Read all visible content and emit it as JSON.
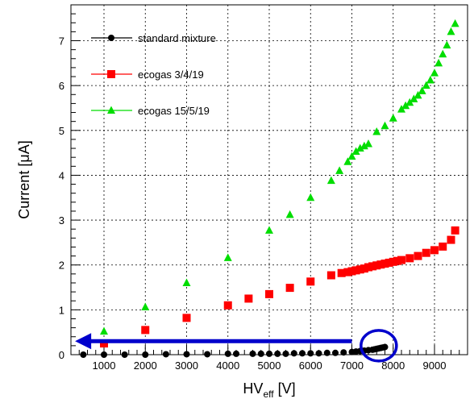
{
  "chart_data": {
    "type": "scatter",
    "xlabel": "HV",
    "xlabel_sub": "eff",
    "xlabel_unit": " [V]",
    "ylabel": "Current [μA]",
    "xlim": [
      200,
      9800
    ],
    "ylim": [
      0,
      7.8
    ],
    "x_ticks": [
      1000,
      2000,
      3000,
      4000,
      5000,
      6000,
      7000,
      8000,
      9000
    ],
    "y_ticks": [
      0,
      1,
      2,
      3,
      4,
      5,
      6,
      7
    ],
    "grid": true,
    "legend_position": "top-left",
    "series": [
      {
        "name": "standard mixture",
        "color": "#000000",
        "marker": "circle",
        "x": [
          500,
          1000,
          1500,
          2000,
          2500,
          3000,
          3500,
          4000,
          4200,
          4600,
          4800,
          5000,
          5200,
          5400,
          5600,
          5800,
          6000,
          6200,
          6400,
          6600,
          6800,
          7000,
          7100,
          7200,
          7300,
          7400,
          7500,
          7550,
          7600,
          7650,
          7700,
          7750,
          7800
        ],
        "y": [
          0.0,
          0.0,
          0.0,
          0.0,
          0.01,
          0.01,
          0.01,
          0.02,
          0.02,
          0.02,
          0.02,
          0.02,
          0.02,
          0.02,
          0.03,
          0.03,
          0.03,
          0.03,
          0.04,
          0.04,
          0.05,
          0.06,
          0.07,
          0.08,
          0.09,
          0.1,
          0.11,
          0.12,
          0.13,
          0.14,
          0.15,
          0.16,
          0.17
        ]
      },
      {
        "name": "ecogas 3/4/19",
        "color": "#ff0000",
        "marker": "square",
        "x": [
          1000,
          2000,
          3000,
          4000,
          4500,
          5000,
          5500,
          6000,
          6500,
          6750,
          6900,
          7000,
          7100,
          7200,
          7300,
          7400,
          7500,
          7600,
          7700,
          7800,
          7900,
          8000,
          8100,
          8200,
          8400,
          8600,
          8800,
          9000,
          9200,
          9400,
          9500
        ],
        "y": [
          0.25,
          0.55,
          0.82,
          1.1,
          1.25,
          1.35,
          1.49,
          1.63,
          1.77,
          1.82,
          1.84,
          1.86,
          1.88,
          1.9,
          1.92,
          1.95,
          1.97,
          1.99,
          2.01,
          2.03,
          2.05,
          2.07,
          2.09,
          2.11,
          2.15,
          2.2,
          2.27,
          2.33,
          2.41,
          2.56,
          2.77
        ]
      },
      {
        "name": "ecogas 15/5/19",
        "color": "#00dd00",
        "marker": "triangle",
        "x": [
          1000,
          2000,
          3000,
          4000,
          5000,
          5500,
          6000,
          6500,
          6700,
          6900,
          7000,
          7100,
          7200,
          7300,
          7400,
          7600,
          7800,
          8000,
          8200,
          8300,
          8400,
          8500,
          8600,
          8700,
          8800,
          8900,
          9000,
          9100,
          9200,
          9300,
          9400,
          9500
        ],
        "y": [
          0.52,
          1.06,
          1.6,
          2.16,
          2.77,
          3.12,
          3.5,
          3.88,
          4.1,
          4.3,
          4.42,
          4.53,
          4.6,
          4.65,
          4.7,
          4.97,
          5.1,
          5.27,
          5.47,
          5.55,
          5.62,
          5.7,
          5.78,
          5.88,
          6.0,
          6.12,
          6.28,
          6.5,
          6.7,
          6.9,
          7.2,
          7.38
        ]
      }
    ]
  },
  "annotations": {
    "arrow_color": "#0000cc",
    "circle_color": "#0000cc",
    "arrow_y": 0.3,
    "arrow_x_start": 7000,
    "arrow_x_end": 300,
    "circle_center": [
      7650,
      0.2
    ]
  }
}
